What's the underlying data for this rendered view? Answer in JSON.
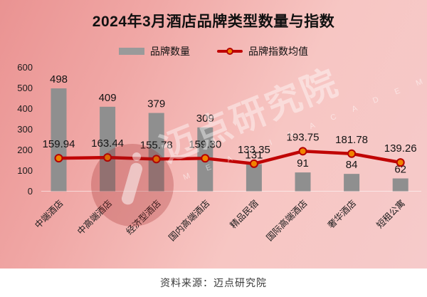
{
  "title": "2024年3月酒店品牌类型数量与指数",
  "legend": {
    "bar_label": "品牌数量",
    "line_label": "品牌指数均值"
  },
  "source": "资料来源：迈点研究院",
  "watermark": {
    "text": "迈点研究院",
    "subtext": "M E A D I N  A C A D E M Y"
  },
  "colors": {
    "bar": "#8f8f8f",
    "line": "#c00505",
    "marker_fill": "#f08300",
    "marker_stroke": "#b50000",
    "background_top_left": "#ea9392",
    "background_bottom_right": "#f6caca",
    "title_text": "#111111"
  },
  "chart_data": {
    "type": "bar",
    "subtype": "bar+line combo",
    "title": "2024年3月酒店品牌类型数量与指数",
    "categories": [
      "中端酒店",
      "中高端酒店",
      "经济型酒店",
      "国内高端酒店",
      "精品民宿",
      "国际高端酒店",
      "奢华酒店",
      "短租公寓"
    ],
    "series": [
      {
        "name": "品牌数量",
        "type": "bar",
        "values": [
          498,
          409,
          379,
          309,
          131,
          91,
          84,
          62
        ],
        "labels": [
          "498",
          "409",
          "379",
          "309",
          "131",
          "91",
          "84",
          "62"
        ]
      },
      {
        "name": "品牌指数均值",
        "type": "line",
        "values": [
          159.94,
          163.44,
          155.78,
          159.3,
          133.35,
          193.75,
          181.78,
          139.26
        ],
        "labels": [
          "159.94",
          "163.44",
          "155.78",
          "159.30",
          "133.35",
          "193.75",
          "181.78",
          "139.26"
        ]
      }
    ],
    "xlabel": "",
    "ylabel": "",
    "ylim": [
      0,
      600
    ],
    "yticks": [
      0,
      100,
      200,
      300,
      400,
      500,
      600
    ],
    "grid": false,
    "legend_position": "top",
    "x_tick_rotation": -45
  }
}
